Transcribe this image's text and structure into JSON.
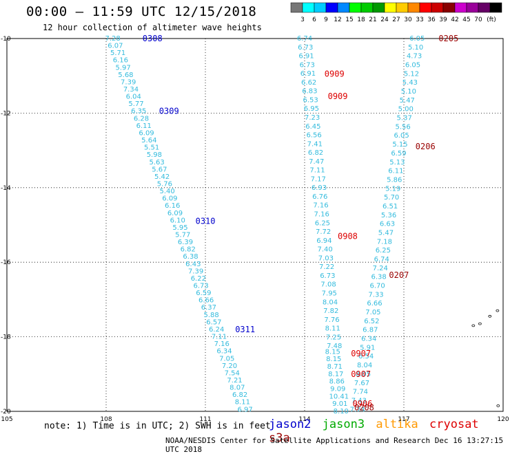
{
  "title": "00:00 – 11:59 UTC 12/15/2018",
  "subtitle": "12 hour collection of altimeter wave heights",
  "note": "note: 1) Time is in UTC; 2) SWH is in feet",
  "footer": "NOAA/NESDIS Center for Satellite Applications and Research    Dec 16 13:27:15 UTC 2018",
  "satellites": [
    {
      "name": "jason2",
      "color": "#0000cc"
    },
    {
      "name": "jason3",
      "color": "#00aa00"
    },
    {
      "name": "altika",
      "color": "#ff9900"
    },
    {
      "name": "cryosat",
      "color": "#dd0000"
    },
    {
      "name": "s3a",
      "color": "#990000"
    }
  ],
  "colorbar": {
    "unit": "(ft)",
    "colors": [
      "#777777",
      "#00ffff",
      "#00ccff",
      "#0000ff",
      "#0088ff",
      "#00ff00",
      "#00cc00",
      "#009900",
      "#ffff00",
      "#ffcc00",
      "#ff8800",
      "#ff0000",
      "#cc0000",
      "#880000",
      "#cc00cc",
      "#990099",
      "#660066",
      "#000000"
    ],
    "labels": [
      "3",
      "6",
      "9",
      "12",
      "15",
      "18",
      "21",
      "24",
      "27",
      "30",
      "33",
      "36",
      "39",
      "42",
      "45",
      "70"
    ]
  },
  "map": {
    "lon_range": [
      105,
      120
    ],
    "lat_range": [
      -20,
      -10
    ],
    "lon_ticks": [
      "105",
      "108",
      "111",
      "114",
      "117",
      "120"
    ],
    "lat_ticks": [
      "-10",
      "-12",
      "-14",
      "-16",
      "-18",
      "-20"
    ],
    "lat_tick_values": [
      -10,
      -12,
      -14,
      -16,
      -18,
      -20
    ]
  },
  "tracks": [
    {
      "id": "track-a",
      "color": "#33bbdd",
      "start": [
        108.2,
        -10.0
      ],
      "end": [
        112.2,
        -19.95
      ],
      "values": [
        "7.28",
        "6.07",
        "5.71",
        "6.16",
        "5.97",
        "5.68",
        "7.39",
        "7.34",
        "6.04",
        "5.77",
        "6.35",
        "6.28",
        "6.11",
        "6.09",
        "5.64",
        "5.51",
        "5.98",
        "5.63",
        "5.67",
        "5.42",
        "5.76",
        "5.40",
        "6.09",
        "6.16",
        "6.09",
        "6.10",
        "5.95",
        "5.77",
        "6.39",
        "6.82",
        "6.38",
        "6.43",
        "7.39",
        "6.22",
        "6.73",
        "6.59",
        "6.66",
        "6.37",
        "5.88",
        "6.57",
        "6.24",
        "7.11",
        "7.16",
        "6.34",
        "7.05",
        "7.20",
        "7.54",
        "7.21",
        "8.07",
        "6.82",
        "8.11",
        "6.97"
      ]
    },
    {
      "id": "track-b",
      "color": "#33bbdd",
      "start": [
        114.0,
        -10.0
      ],
      "end": [
        114.9,
        -18.25
      ],
      "values": [
        "6.74",
        "6.73",
        "6.91",
        "6.73",
        "6.91",
        "6.62",
        "6.83",
        "6.53",
        "6.95",
        "7.23",
        "6.45",
        "6.56",
        "7.41",
        "6.82",
        "7.47",
        "7.11",
        "7.17",
        "6.93",
        "6.76",
        "7.16",
        "7.16",
        "6.25",
        "7.72",
        "6.94",
        "7.40",
        "7.03",
        "7.22",
        "6.73",
        "7.08",
        "7.95",
        "8.04",
        "7.82",
        "7.76",
        "8.11",
        "7.25",
        "7.48"
      ]
    },
    {
      "id": "track-b2",
      "color": "#33bbdd",
      "start": [
        114.85,
        -18.4
      ],
      "end": [
        115.1,
        -20.0
      ],
      "values": [
        "8.15",
        "8.15",
        "8.71",
        "8.17",
        "8.86",
        "9.09",
        "10.41",
        "9.01",
        "8.10"
      ]
    },
    {
      "id": "track-c",
      "color": "#33bbdd",
      "start": [
        117.4,
        -10.0
      ],
      "end": [
        115.6,
        -19.95
      ],
      "values": [
        "6.05",
        "5.10",
        "4.73",
        "6.05",
        "5.12",
        "5.43",
        "5.10",
        "5.47",
        "5.00",
        "5.37",
        "5.56",
        "6.05",
        "5.15",
        "6.59",
        "5.13",
        "6.11",
        "5.86",
        "5.19",
        "5.70",
        "6.51",
        "5.36",
        "6.63",
        "5.47",
        "7.18",
        "6.25",
        "6.74",
        "7.24",
        "6.38",
        "6.70",
        "7.33",
        "6.66",
        "7.05",
        "6.52",
        "6.87",
        "6.34",
        "5.91",
        "6.54",
        "8.04",
        "8.05",
        "7.67",
        "7.74",
        "7.43",
        "7.74"
      ]
    }
  ],
  "time_labels": [
    {
      "text": "0308",
      "color": "#0000cc",
      "lon": 109.1,
      "lat": -10.0
    },
    {
      "text": "0309",
      "color": "#0000cc",
      "lon": 109.6,
      "lat": -11.95
    },
    {
      "text": "0310",
      "color": "#0000cc",
      "lon": 110.7,
      "lat": -14.9
    },
    {
      "text": "0311",
      "color": "#0000cc",
      "lon": 111.9,
      "lat": -17.8
    },
    {
      "text": "0909",
      "color": "#dd0000",
      "lon": 114.6,
      "lat": -10.95
    },
    {
      "text": "0909",
      "color": "#dd0000",
      "lon": 114.7,
      "lat": -11.55
    },
    {
      "text": "0908",
      "color": "#dd0000",
      "lon": 115.0,
      "lat": -15.3
    },
    {
      "text": "0907",
      "color": "#dd0000",
      "lon": 115.4,
      "lat": -18.45
    },
    {
      "text": "0907",
      "color": "#dd0000",
      "lon": 115.4,
      "lat": -19.0
    },
    {
      "text": "0906",
      "color": "#dd0000",
      "lon": 115.45,
      "lat": -19.8
    },
    {
      "text": "0205",
      "color": "#990000",
      "lon": 118.05,
      "lat": -10.0
    },
    {
      "text": "0206",
      "color": "#990000",
      "lon": 117.35,
      "lat": -12.9
    },
    {
      "text": "0207",
      "color": "#990000",
      "lon": 116.55,
      "lat": -16.35
    },
    {
      "text": "0208",
      "color": "#990000",
      "lon": 115.5,
      "lat": -19.9
    }
  ],
  "islands": [
    {
      "lon": 119.83,
      "lat": -17.3
    },
    {
      "lon": 119.6,
      "lat": -17.45
    },
    {
      "lon": 119.1,
      "lat": -17.7
    },
    {
      "lon": 119.3,
      "lat": -17.65
    },
    {
      "lon": 119.85,
      "lat": -19.85
    }
  ]
}
